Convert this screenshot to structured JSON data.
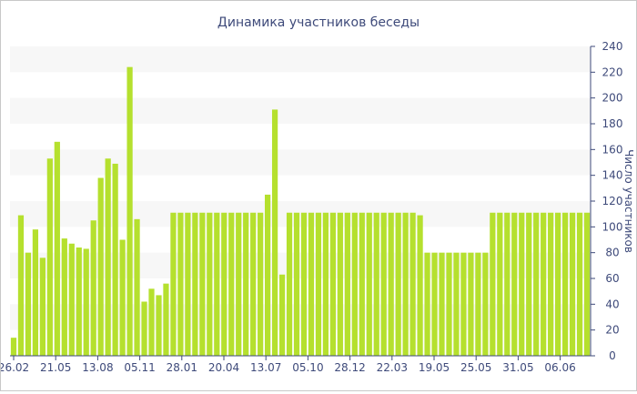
{
  "chart_data": {
    "type": "bar",
    "title": "Динамика участников беседы",
    "ylabel": "Число участников",
    "xlabel": "",
    "ylim": [
      0,
      240
    ],
    "yticks": [
      0,
      20,
      40,
      60,
      80,
      100,
      120,
      140,
      160,
      180,
      200,
      220,
      240
    ],
    "x_tick_labels": [
      "26.02",
      "21.05",
      "13.08",
      "05.11",
      "28.01",
      "20.04",
      "13.07",
      "05.10",
      "28.12",
      "22.03",
      "19.05",
      "25.05",
      "31.05",
      "06.06"
    ],
    "values": [
      14,
      109,
      80,
      98,
      76,
      153,
      166,
      91,
      87,
      84,
      83,
      105,
      138,
      153,
      149,
      90,
      224,
      106,
      42,
      52,
      47,
      56,
      111,
      111,
      111,
      111,
      111,
      111,
      111,
      111,
      111,
      111,
      111,
      111,
      111,
      125,
      191,
      63,
      111,
      111,
      111,
      111,
      111,
      111,
      111,
      111,
      111,
      111,
      111,
      111,
      111,
      111,
      111,
      111,
      111,
      111,
      109,
      80,
      80,
      80,
      80,
      80,
      80,
      80,
      80,
      80,
      111,
      111,
      111,
      111,
      111,
      111,
      111,
      111,
      111,
      111,
      111,
      111,
      111,
      111
    ],
    "bar_color": "#b5e02e",
    "band_color": "#f7f7f7",
    "axis_color": "#3e4a7a",
    "grid": "horizontal bands",
    "y_axis_position": "right"
  }
}
